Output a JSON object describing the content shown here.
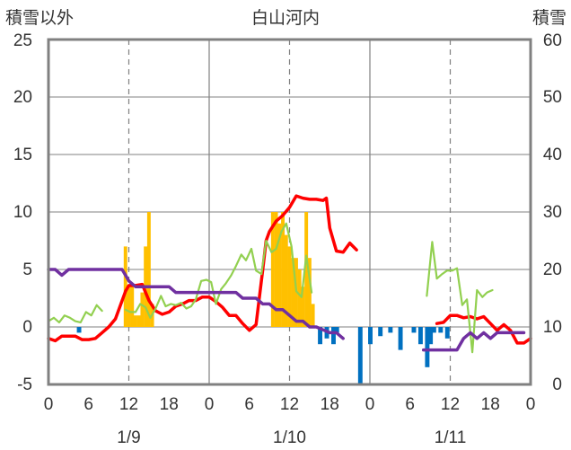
{
  "chart_data": {
    "type": "bar+line",
    "title": "白山河内",
    "left_axis_label": "積雪以外",
    "right_axis_label": "積雪",
    "left_ylim": [
      -5,
      25
    ],
    "left_yticks": [
      -5,
      0,
      5,
      10,
      15,
      20,
      25
    ],
    "right_ylim": [
      0,
      60
    ],
    "right_yticks": [
      0,
      10,
      20,
      30,
      40,
      50,
      60
    ],
    "x_range_hours": [
      0,
      72
    ],
    "x_tick_labels": [
      "0",
      "6",
      "12",
      "18",
      "0",
      "6",
      "12",
      "18",
      "0",
      "6",
      "12",
      "18",
      "0"
    ],
    "date_labels": [
      "1/9",
      "1/10",
      "1/11"
    ],
    "grid": true,
    "colors": {
      "snowfall": "#FFC000",
      "negative_bars": "#0070C0",
      "temperature": "#FF0000",
      "wind": "#92D050",
      "snow_depth": "#7030A0",
      "frame": "#808080"
    },
    "bars_positive": [
      {
        "x": 11.5,
        "y": 7
      },
      {
        "x": 12.0,
        "y": 3.5
      },
      {
        "x": 12.5,
        "y": 3.5
      },
      {
        "x": 13.0,
        "y": 1
      },
      {
        "x": 13.5,
        "y": 1
      },
      {
        "x": 14.0,
        "y": 3
      },
      {
        "x": 14.5,
        "y": 7
      },
      {
        "x": 15.0,
        "y": 10
      },
      {
        "x": 15.5,
        "y": 2
      },
      {
        "x": 33.5,
        "y": 10
      },
      {
        "x": 34.0,
        "y": 10
      },
      {
        "x": 34.5,
        "y": 9
      },
      {
        "x": 35.0,
        "y": 10
      },
      {
        "x": 35.5,
        "y": 8
      },
      {
        "x": 36.0,
        "y": 7
      },
      {
        "x": 36.5,
        "y": 6
      },
      {
        "x": 37.0,
        "y": 6
      },
      {
        "x": 37.5,
        "y": 5
      },
      {
        "x": 38.0,
        "y": 3.5
      },
      {
        "x": 38.5,
        "y": 10
      },
      {
        "x": 39.0,
        "y": 6
      },
      {
        "x": 39.5,
        "y": 2
      }
    ],
    "bars_negative": [
      {
        "x": 4.5,
        "y": -0.5
      },
      {
        "x": 40.5,
        "y": -1.5
      },
      {
        "x": 41.5,
        "y": -1
      },
      {
        "x": 42.5,
        "y": -1.5
      },
      {
        "x": 43.0,
        "y": -0.5
      },
      {
        "x": 46.5,
        "y": -5
      },
      {
        "x": 48.0,
        "y": -1.5
      },
      {
        "x": 49.5,
        "y": -0.8
      },
      {
        "x": 51.0,
        "y": -0.5
      },
      {
        "x": 52.5,
        "y": -2
      },
      {
        "x": 54.5,
        "y": -0.5
      },
      {
        "x": 55.5,
        "y": -1.5
      },
      {
        "x": 56.5,
        "y": -3.5
      },
      {
        "x": 57.0,
        "y": -1.5
      },
      {
        "x": 57.5,
        "y": -0.5
      },
      {
        "x": 58.5,
        "y": -0.5
      },
      {
        "x": 59.5,
        "y": -1
      }
    ],
    "series": [
      {
        "name": "temperature",
        "axis": "left",
        "points": [
          [
            0,
            -1.0
          ],
          [
            1,
            -1.2
          ],
          [
            2,
            -0.8
          ],
          [
            3,
            -0.8
          ],
          [
            4,
            -0.8
          ],
          [
            5,
            -1.1
          ],
          [
            6,
            -1.1
          ],
          [
            7,
            -1.0
          ],
          [
            8,
            -0.5
          ],
          [
            9,
            0.0
          ],
          [
            10,
            0.7
          ],
          [
            11.5,
            3.1
          ],
          [
            12,
            3.6
          ],
          [
            13,
            3.6
          ],
          [
            14,
            3.7
          ],
          [
            15,
            2.3
          ],
          [
            16,
            1.4
          ],
          [
            17,
            1.1
          ],
          [
            18,
            1.3
          ],
          [
            19,
            1.8
          ],
          [
            20,
            2.0
          ],
          [
            21,
            2.3
          ],
          [
            22,
            2.3
          ],
          [
            23,
            2.6
          ],
          [
            24,
            2.6
          ],
          [
            25,
            2.2
          ],
          [
            26,
            1.7
          ],
          [
            27,
            1.0
          ],
          [
            28,
            1.0
          ],
          [
            29,
            0.3
          ],
          [
            30,
            -0.3
          ],
          [
            31,
            0.2
          ],
          [
            32,
            5.0
          ],
          [
            32.5,
            7.5
          ],
          [
            33,
            8.3
          ],
          [
            34,
            9.2
          ],
          [
            35,
            9.7
          ],
          [
            36,
            10.4
          ],
          [
            37,
            11.4
          ],
          [
            38,
            11.2
          ],
          [
            39,
            11.1
          ],
          [
            40,
            11.1
          ],
          [
            41,
            11.0
          ],
          [
            41.5,
            11.2
          ],
          [
            42,
            8.6
          ],
          [
            43,
            6.6
          ],
          [
            44,
            6.5
          ],
          [
            45,
            7.3
          ],
          [
            46,
            6.7
          ],
          [
            58,
            0.3
          ],
          [
            59,
            0.4
          ],
          [
            60,
            1.0
          ],
          [
            61,
            1.0
          ],
          [
            62,
            0.8
          ],
          [
            63,
            0.9
          ],
          [
            64,
            0.7
          ],
          [
            65,
            0.9
          ],
          [
            66,
            0.3
          ],
          [
            67,
            -0.3
          ],
          [
            68,
            0.2
          ],
          [
            69,
            -0.3
          ],
          [
            70,
            -1.4
          ],
          [
            71,
            -1.4
          ],
          [
            72,
            -1.0
          ]
        ]
      },
      {
        "name": "wind",
        "axis": "left",
        "points": [
          [
            0,
            0.5
          ],
          [
            0.8,
            0.8
          ],
          [
            1.6,
            0.4
          ],
          [
            2.4,
            1.0
          ],
          [
            3.2,
            0.8
          ],
          [
            4,
            0.5
          ],
          [
            4.8,
            0.4
          ],
          [
            5.6,
            1.3
          ],
          [
            6.4,
            1.0
          ],
          [
            7.2,
            1.9
          ],
          [
            8,
            1.4
          ],
          [
            11.5,
            1.5
          ],
          [
            12.2,
            1.3
          ],
          [
            13,
            1.3
          ],
          [
            13.7,
            2.0
          ],
          [
            14.5,
            1.7
          ],
          [
            15.2,
            0.8
          ],
          [
            16,
            1.6
          ],
          [
            16.8,
            2.7
          ],
          [
            17.5,
            1.8
          ],
          [
            18.3,
            2.0
          ],
          [
            19,
            1.9
          ],
          [
            19.8,
            2.1
          ],
          [
            20.6,
            1.6
          ],
          [
            21.3,
            1.8
          ],
          [
            22,
            2.4
          ],
          [
            22.8,
            4.0
          ],
          [
            23.6,
            4.1
          ],
          [
            24.3,
            3.9
          ],
          [
            25,
            2.0
          ],
          [
            25.8,
            3.3
          ],
          [
            26.5,
            3.8
          ],
          [
            27.3,
            4.5
          ],
          [
            28,
            5.3
          ],
          [
            28.8,
            6.3
          ],
          [
            29.5,
            5.8
          ],
          [
            30.3,
            6.8
          ],
          [
            31,
            4.9
          ],
          [
            31.8,
            4.6
          ],
          [
            32.5,
            7.5
          ],
          [
            33.3,
            6.5
          ],
          [
            34,
            6.8
          ],
          [
            34.8,
            8.3
          ],
          [
            35.5,
            9.0
          ],
          [
            36.3,
            7.0
          ],
          [
            37,
            3.1
          ],
          [
            37.8,
            2.6
          ],
          [
            38.5,
            6.2
          ],
          [
            39.3,
            3.0
          ],
          [
            56.5,
            2.7
          ],
          [
            57.3,
            7.4
          ],
          [
            58,
            4.2
          ],
          [
            58.8,
            4.6
          ],
          [
            59.5,
            4.9
          ],
          [
            60.3,
            4.9
          ],
          [
            61,
            5.1
          ],
          [
            61.8,
            1.9
          ],
          [
            62.5,
            2.4
          ],
          [
            63.3,
            -2.2
          ],
          [
            64,
            3.2
          ],
          [
            64.8,
            2.6
          ],
          [
            65.5,
            3.0
          ],
          [
            66.3,
            3.2
          ]
        ]
      },
      {
        "name": "snow_depth",
        "axis": "right",
        "points": [
          [
            0,
            20
          ],
          [
            1,
            20
          ],
          [
            2,
            19
          ],
          [
            3,
            20
          ],
          [
            4,
            20
          ],
          [
            5,
            20
          ],
          [
            6,
            20
          ],
          [
            7,
            20
          ],
          [
            8,
            20
          ],
          [
            9,
            20
          ],
          [
            10,
            20
          ],
          [
            11,
            20
          ],
          [
            11.5,
            19
          ],
          [
            12,
            18
          ],
          [
            13,
            17
          ],
          [
            14,
            17
          ],
          [
            15,
            17
          ],
          [
            16,
            17
          ],
          [
            17,
            17
          ],
          [
            18,
            17
          ],
          [
            19,
            16
          ],
          [
            20,
            16
          ],
          [
            21,
            16
          ],
          [
            22,
            16
          ],
          [
            23,
            16
          ],
          [
            24,
            16
          ],
          [
            25,
            16
          ],
          [
            26,
            16
          ],
          [
            27,
            16
          ],
          [
            28,
            16
          ],
          [
            29,
            15
          ],
          [
            30,
            15
          ],
          [
            31,
            15
          ],
          [
            32,
            14
          ],
          [
            33,
            14
          ],
          [
            34,
            13
          ],
          [
            35,
            13
          ],
          [
            36,
            12
          ],
          [
            37,
            11
          ],
          [
            38,
            11
          ],
          [
            39,
            10
          ],
          [
            40,
            10
          ],
          [
            41,
            9.5
          ],
          [
            42,
            9
          ],
          [
            43,
            9
          ],
          [
            44,
            8
          ],
          [
            56,
            6
          ],
          [
            57,
            6
          ],
          [
            58,
            6
          ],
          [
            59,
            6
          ],
          [
            60,
            6
          ],
          [
            61,
            6
          ],
          [
            62,
            8
          ],
          [
            63,
            9
          ],
          [
            64,
            8
          ],
          [
            65,
            9
          ],
          [
            66,
            8
          ],
          [
            67,
            9
          ],
          [
            68,
            9
          ],
          [
            69,
            9
          ],
          [
            70,
            9
          ],
          [
            71,
            9
          ]
        ]
      }
    ]
  },
  "labels": {
    "title": "白山河内",
    "left_axis_label": "積雪以外",
    "right_axis_label": "積雪",
    "date1": "1/9",
    "date2": "1/10",
    "date3": "1/11",
    "left_ticks": [
      "25",
      "20",
      "15",
      "10",
      "5",
      "0",
      "-5"
    ],
    "right_ticks": [
      "60",
      "50",
      "40",
      "30",
      "20",
      "10",
      "0"
    ],
    "x_ticks": [
      "0",
      "6",
      "12",
      "18",
      "0",
      "6",
      "12",
      "18",
      "0",
      "6",
      "12",
      "18",
      "0"
    ]
  }
}
